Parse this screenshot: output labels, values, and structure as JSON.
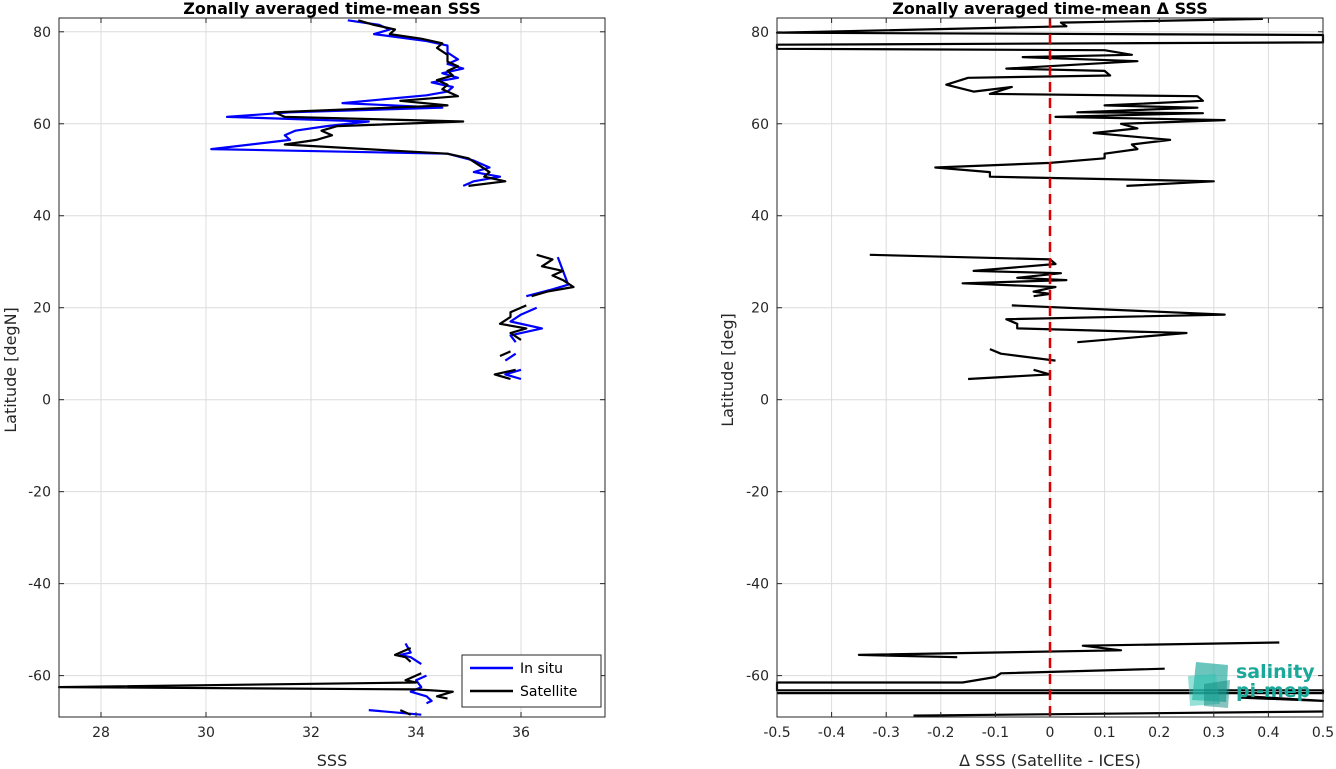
{
  "chart_data": [
    {
      "type": "line",
      "title": "Zonally averaged time-mean SSS",
      "xlabel": "SSS",
      "ylabel": "Latitude [degN]",
      "xlim": [
        27.2,
        37.6
      ],
      "ylim": [
        -69,
        83
      ],
      "xticks": [
        28,
        30,
        32,
        34,
        36
      ],
      "xtick_labels": [
        "28",
        "30",
        "32",
        "34",
        "36"
      ],
      "yticks": [
        -60,
        -40,
        -20,
        0,
        20,
        40,
        60,
        80
      ],
      "ytick_labels": [
        "-60",
        "-40",
        "-20",
        "0",
        "20",
        "40",
        "60",
        "80"
      ],
      "grid": true,
      "legend": "bottom-right",
      "series": [
        {
          "name": "In situ",
          "color": "#0000ff",
          "segments": [
            [
              [
                32.7,
                82.5
              ],
              [
                33.3,
                81.5
              ],
              [
                33.5,
                80.5
              ],
              [
                33.2,
                79.5
              ],
              [
                34.2,
                78.0
              ],
              [
                34.6,
                77.0
              ],
              [
                34.6,
                75.5
              ],
              [
                34.8,
                74.0
              ],
              [
                34.6,
                73.0
              ],
              [
                34.9,
                72.0
              ],
              [
                34.5,
                71.0
              ],
              [
                34.8,
                70.0
              ],
              [
                34.3,
                69.0
              ],
              [
                34.7,
                68.0
              ],
              [
                34.6,
                67.0
              ],
              [
                34.2,
                66.2
              ],
              [
                32.6,
                64.5
              ],
              [
                34.5,
                63.5
              ],
              [
                31.6,
                62.5
              ],
              [
                30.4,
                61.5
              ],
              [
                33.1,
                60.5
              ],
              [
                32.3,
                59.5
              ],
              [
                31.7,
                58.5
              ],
              [
                31.5,
                57.5
              ],
              [
                31.6,
                56.5
              ],
              [
                30.1,
                54.5
              ],
              [
                34.6,
                53.5
              ],
              [
                35.1,
                52.0
              ],
              [
                35.4,
                50.5
              ],
              [
                35.1,
                49.5
              ],
              [
                35.6,
                48.5
              ],
              [
                35.1,
                47.5
              ],
              [
                34.9,
                46.5
              ]
            ],
            [
              [
                36.7,
                31.0
              ],
              [
                36.8,
                28.0
              ],
              [
                36.9,
                25.0
              ],
              [
                36.6,
                24.0
              ],
              [
                36.1,
                22.5
              ]
            ],
            [
              [
                36.3,
                20.0
              ],
              [
                36.0,
                18.5
              ],
              [
                35.8,
                17.0
              ],
              [
                36.4,
                15.5
              ],
              [
                35.8,
                14.0
              ],
              [
                35.9,
                12.5
              ]
            ],
            [
              [
                35.9,
                10.0
              ],
              [
                35.7,
                8.5
              ]
            ],
            [
              [
                36.0,
                6.5
              ],
              [
                35.7,
                5.5
              ],
              [
                36.0,
                4.5
              ]
            ],
            [
              [
                33.8,
                -53.0
              ],
              [
                33.9,
                -55.0
              ],
              [
                33.7,
                -55.5
              ],
              [
                33.9,
                -56.0
              ],
              [
                34.1,
                -57.5
              ]
            ],
            [
              [
                34.2,
                -60.0
              ],
              [
                34.0,
                -61.0
              ],
              [
                34.1,
                -62.5
              ],
              [
                33.9,
                -63.5
              ],
              [
                34.2,
                -64.5
              ],
              [
                34.3,
                -65.5
              ],
              [
                34.2,
                -66.0
              ]
            ],
            [
              [
                33.1,
                -67.5
              ],
              [
                34.1,
                -68.5
              ]
            ]
          ]
        },
        {
          "name": "Satellite",
          "color": "#000000",
          "segments": [
            [
              [
                32.9,
                82.5
              ],
              [
                33.2,
                81.5
              ],
              [
                33.6,
                80.5
              ],
              [
                33.5,
                79.5
              ],
              [
                34.1,
                78.5
              ],
              [
                34.5,
                77.5
              ],
              [
                34.4,
                76.5
              ],
              [
                34.6,
                75.0
              ],
              [
                34.6,
                73.5
              ],
              [
                34.8,
                72.5
              ],
              [
                34.6,
                71.5
              ],
              [
                34.7,
                70.5
              ],
              [
                34.4,
                69.5
              ],
              [
                34.6,
                68.5
              ],
              [
                34.5,
                67.5
              ],
              [
                34.8,
                66.0
              ],
              [
                33.7,
                65.0
              ],
              [
                34.6,
                64.0
              ],
              [
                31.3,
                62.5
              ],
              [
                31.5,
                61.5
              ],
              [
                34.9,
                60.5
              ],
              [
                32.5,
                59.5
              ],
              [
                32.2,
                58.5
              ],
              [
                32.4,
                57.5
              ],
              [
                32.1,
                56.5
              ],
              [
                31.5,
                55.5
              ],
              [
                34.6,
                53.5
              ],
              [
                35.0,
                52.5
              ],
              [
                35.2,
                51.0
              ],
              [
                35.4,
                49.5
              ],
              [
                35.3,
                48.5
              ],
              [
                35.7,
                47.5
              ],
              [
                35.0,
                46.5
              ]
            ],
            [
              [
                36.3,
                31.5
              ],
              [
                36.6,
                30.5
              ],
              [
                36.4,
                29.0
              ],
              [
                36.8,
                28.0
              ],
              [
                36.6,
                27.0
              ],
              [
                36.8,
                26.0
              ],
              [
                37.0,
                24.5
              ],
              [
                36.5,
                23.5
              ],
              [
                36.2,
                22.5
              ]
            ],
            [
              [
                36.1,
                20.5
              ],
              [
                35.8,
                19.0
              ],
              [
                35.8,
                18.0
              ],
              [
                35.6,
                16.5
              ],
              [
                36.1,
                15.5
              ],
              [
                35.8,
                14.5
              ],
              [
                36.0,
                13.0
              ]
            ],
            [
              [
                35.8,
                10.5
              ],
              [
                35.6,
                9.5
              ]
            ],
            [
              [
                35.9,
                6.5
              ],
              [
                35.5,
                5.5
              ],
              [
                35.8,
                4.5
              ]
            ],
            [
              [
                33.9,
                -54.0
              ],
              [
                33.6,
                -55.5
              ],
              [
                33.8,
                -56.0
              ],
              [
                33.9,
                -57.0
              ]
            ],
            [
              [
                34.1,
                -59.5
              ],
              [
                33.8,
                -61.0
              ],
              [
                34.0,
                -61.5
              ],
              [
                27.2,
                -62.5
              ],
              [
                34.0,
                -63.0
              ],
              [
                34.7,
                -63.5
              ],
              [
                34.4,
                -64.5
              ],
              [
                34.6,
                -65.0
              ]
            ],
            [
              [
                33.7,
                -67.5
              ],
              [
                33.9,
                -68.5
              ]
            ]
          ]
        }
      ]
    },
    {
      "type": "line",
      "title": "Zonally averaged time-mean Δ SSS",
      "xlabel": "Δ SSS (Satellite - ICES)",
      "ylabel": "Latitude [deg]",
      "xlim": [
        -0.5,
        0.5
      ],
      "ylim": [
        -69,
        83
      ],
      "xticks": [
        -0.5,
        -0.4,
        -0.3,
        -0.2,
        -0.1,
        0,
        0.1,
        0.2,
        0.3,
        0.4,
        0.5
      ],
      "xtick_labels": [
        "-0.5",
        "-0.4",
        "-0.3",
        "-0.2",
        "-0.1",
        "0",
        "0.1",
        "0.2",
        "0.3",
        "0.4",
        "0.5"
      ],
      "yticks": [
        -60,
        -40,
        -20,
        0,
        20,
        40,
        60,
        80
      ],
      "ytick_labels": [
        "-60",
        "-40",
        "-20",
        "0",
        "20",
        "40",
        "60",
        "80"
      ],
      "grid": true,
      "reference_line": {
        "x": 0,
        "color": "#dd0000",
        "style": "dashed"
      },
      "series": [
        {
          "color": "#000000",
          "segments": [
            [
              [
                0.39,
                82.8
              ],
              [
                0.02,
                82.0
              ],
              [
                0.03,
                81.2
              ],
              [
                -0.5,
                79.8
              ],
              [
                0.5,
                79.3
              ],
              [
                0.5,
                77.7
              ],
              [
                -0.5,
                77.2
              ],
              [
                -0.5,
                76.3
              ],
              [
                0.1,
                76.0
              ],
              [
                0.15,
                75.0
              ],
              [
                -0.05,
                74.5
              ],
              [
                0.16,
                73.6
              ],
              [
                -0.08,
                72.0
              ],
              [
                0.1,
                71.5
              ],
              [
                0.11,
                70.5
              ],
              [
                -0.15,
                70.0
              ],
              [
                -0.19,
                68.5
              ],
              [
                -0.14,
                67.0
              ],
              [
                -0.07,
                68.0
              ],
              [
                -0.11,
                66.5
              ],
              [
                0.27,
                66.0
              ],
              [
                0.28,
                65.0
              ],
              [
                0.1,
                64.0
              ],
              [
                0.27,
                63.5
              ],
              [
                0.05,
                62.5
              ],
              [
                0.28,
                62.3
              ],
              [
                0.01,
                61.5
              ],
              [
                0.32,
                60.8
              ],
              [
                0.13,
                60.0
              ],
              [
                0.16,
                59.0
              ],
              [
                0.08,
                58.0
              ],
              [
                0.22,
                56.5
              ],
              [
                0.15,
                55.5
              ],
              [
                0.16,
                54.5
              ],
              [
                0.1,
                53.5
              ],
              [
                0.1,
                52.5
              ],
              [
                0.0,
                51.5
              ],
              [
                -0.21,
                50.5
              ],
              [
                -0.11,
                49.5
              ],
              [
                -0.11,
                48.5
              ],
              [
                0.3,
                47.5
              ],
              [
                0.14,
                46.5
              ]
            ],
            [
              [
                -0.33,
                31.5
              ],
              [
                0.0,
                30.5
              ],
              [
                0.01,
                29.5
              ],
              [
                -0.14,
                28.0
              ],
              [
                0.02,
                27.5
              ],
              [
                -0.06,
                26.5
              ],
              [
                0.03,
                26.0
              ],
              [
                -0.16,
                25.3
              ],
              [
                0.01,
                24.5
              ],
              [
                -0.03,
                23.5
              ],
              [
                0.0,
                23.0
              ],
              [
                -0.03,
                22.5
              ]
            ],
            [
              [
                -0.07,
                20.5
              ],
              [
                0.32,
                18.5
              ],
              [
                -0.08,
                17.5
              ],
              [
                -0.06,
                16.5
              ],
              [
                -0.06,
                15.5
              ],
              [
                0.25,
                14.5
              ],
              [
                0.05,
                12.5
              ]
            ],
            [
              [
                -0.11,
                11.0
              ],
              [
                -0.09,
                10.0
              ],
              [
                0.01,
                8.5
              ]
            ],
            [
              [
                -0.03,
                6.5
              ],
              [
                0.0,
                5.5
              ],
              [
                -0.15,
                4.5
              ]
            ],
            [
              [
                0.42,
                -52.8
              ],
              [
                0.06,
                -53.5
              ],
              [
                0.13,
                -54.5
              ],
              [
                -0.35,
                -55.5
              ],
              [
                -0.17,
                -56.0
              ]
            ],
            [
              [
                0.21,
                -58.5
              ],
              [
                -0.09,
                -59.5
              ],
              [
                -0.1,
                -60.3
              ],
              [
                -0.16,
                -61.5
              ],
              [
                -0.5,
                -61.5
              ],
              [
                -0.5,
                -63.2
              ],
              [
                0.5,
                -63.2
              ],
              [
                0.5,
                -63.8
              ],
              [
                -0.5,
                -63.8
              ]
            ],
            [
              [
                0.36,
                -64.5
              ],
              [
                0.5,
                -65.5
              ],
              [
                0.35,
                -64.8
              ]
            ],
            [
              [
                0.5,
                -67.8
              ],
              [
                -0.25,
                -68.7
              ]
            ]
          ]
        }
      ]
    }
  ],
  "legend": {
    "items": [
      "In situ",
      "Satellite"
    ]
  },
  "logo": {
    "line1": "salinity",
    "line2": "pi-mep"
  }
}
